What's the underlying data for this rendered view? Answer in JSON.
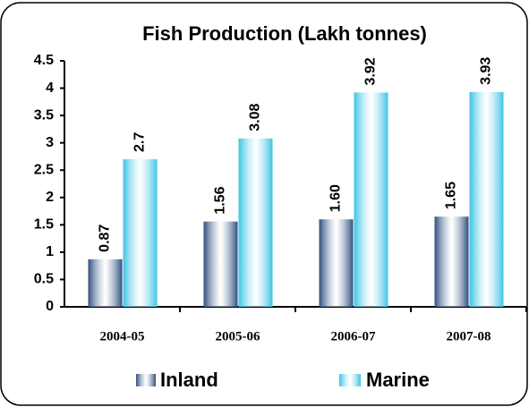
{
  "chart_data": {
    "type": "bar",
    "title": "Fish Production (Lakh  tonnes)",
    "categories": [
      "2004-05",
      "2005-06",
      "2006-07",
      "2007-08"
    ],
    "series": [
      {
        "name": "Inland",
        "color": "#2f4f7f",
        "values": [
          0.87,
          1.56,
          1.6,
          1.65
        ],
        "value_labels": [
          "0.87",
          "1.56",
          "1.60",
          "1.65"
        ]
      },
      {
        "name": "Marine",
        "color": "#3cc4e6",
        "values": [
          2.7,
          3.08,
          3.92,
          3.93
        ]
      }
    ],
    "ylim": [
      0,
      4.5
    ],
    "yticks": [
      0,
      0.5,
      1,
      1.5,
      2,
      2.5,
      3,
      3.5,
      4,
      4.5
    ],
    "grid": false,
    "legend": "bottom"
  }
}
